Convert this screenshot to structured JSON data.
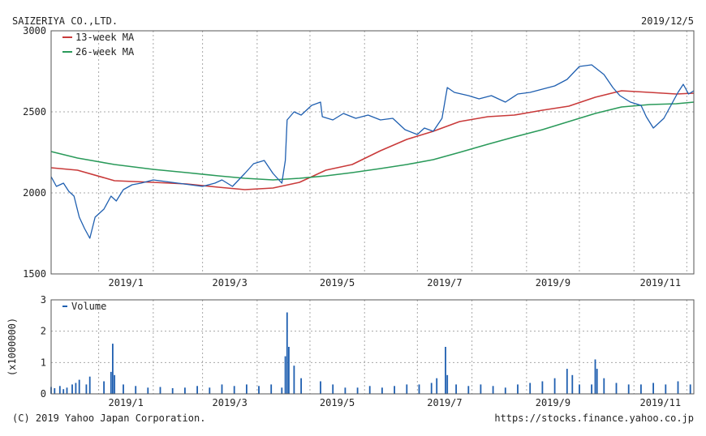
{
  "header": {
    "company": "SAIZERIYA CO.,LTD.",
    "date": "2019/12/5"
  },
  "footer": {
    "copyright": "(C) 2019 Yahoo Japan Corporation.",
    "url": "https://stocks.finance.yahoo.co.jp"
  },
  "colors": {
    "price": "#1f5fb0",
    "ma13": "#c93a3a",
    "ma26": "#2a9a5a",
    "volume": "#1f5fb0",
    "grid": "#a8a8a8",
    "frame": "#555555"
  },
  "chart_data": [
    {
      "type": "line",
      "ylim": [
        1500,
        3000
      ],
      "y_ticks": [
        1500,
        2000,
        2500,
        3000
      ],
      "x_ticks": [
        "2019/1",
        "2019/3",
        "2019/5",
        "2019/7",
        "2019/9",
        "2019/11"
      ],
      "x_domain": [
        "2018-12-05",
        "2019-12-05"
      ],
      "grid": true,
      "legend_position": "top-left",
      "series": [
        {
          "name": "13-week MA",
          "points": [
            [
              "2018-12-05",
              2155
            ],
            [
              "2018-12-20",
              2140
            ],
            [
              "2019-01-10",
              2075
            ],
            [
              "2019-02-01",
              2065
            ],
            [
              "2019-02-20",
              2055
            ],
            [
              "2019-03-10",
              2035
            ],
            [
              "2019-03-25",
              2020
            ],
            [
              "2019-04-10",
              2030
            ],
            [
              "2019-04-25",
              2065
            ],
            [
              "2019-05-10",
              2140
            ],
            [
              "2019-05-25",
              2175
            ],
            [
              "2019-06-10",
              2260
            ],
            [
              "2019-06-25",
              2330
            ],
            [
              "2019-07-10",
              2380
            ],
            [
              "2019-07-25",
              2440
            ],
            [
              "2019-08-10",
              2470
            ],
            [
              "2019-08-25",
              2480
            ],
            [
              "2019-09-10",
              2510
            ],
            [
              "2019-09-25",
              2535
            ],
            [
              "2019-10-10",
              2590
            ],
            [
              "2019-10-25",
              2630
            ],
            [
              "2019-11-10",
              2620
            ],
            [
              "2019-11-25",
              2610
            ],
            [
              "2019-12-05",
              2615
            ]
          ]
        },
        {
          "name": "26-week MA",
          "points": [
            [
              "2018-12-05",
              2255
            ],
            [
              "2018-12-20",
              2215
            ],
            [
              "2019-01-10",
              2175
            ],
            [
              "2019-02-01",
              2145
            ],
            [
              "2019-02-20",
              2125
            ],
            [
              "2019-03-10",
              2105
            ],
            [
              "2019-03-25",
              2090
            ],
            [
              "2019-04-10",
              2080
            ],
            [
              "2019-04-25",
              2090
            ],
            [
              "2019-05-10",
              2105
            ],
            [
              "2019-05-25",
              2125
            ],
            [
              "2019-06-10",
              2150
            ],
            [
              "2019-06-25",
              2175
            ],
            [
              "2019-07-10",
              2205
            ],
            [
              "2019-07-25",
              2250
            ],
            [
              "2019-08-10",
              2300
            ],
            [
              "2019-08-25",
              2345
            ],
            [
              "2019-09-10",
              2390
            ],
            [
              "2019-09-25",
              2440
            ],
            [
              "2019-10-10",
              2490
            ],
            [
              "2019-10-25",
              2530
            ],
            [
              "2019-11-10",
              2545
            ],
            [
              "2019-11-25",
              2550
            ],
            [
              "2019-12-05",
              2560
            ]
          ]
        },
        {
          "name": "",
          "points": [
            [
              "2018-12-05",
              2100
            ],
            [
              "2018-12-08",
              2040
            ],
            [
              "2018-12-12",
              2060
            ],
            [
              "2018-12-15",
              2010
            ],
            [
              "2018-12-18",
              1980
            ],
            [
              "2018-12-21",
              1850
            ],
            [
              "2018-12-24",
              1780
            ],
            [
              "2018-12-27",
              1720
            ],
            [
              "2018-12-30",
              1850
            ],
            [
              "2019-01-04",
              1900
            ],
            [
              "2019-01-08",
              1980
            ],
            [
              "2019-01-11",
              1950
            ],
            [
              "2019-01-15",
              2020
            ],
            [
              "2019-01-20",
              2050
            ],
            [
              "2019-01-25",
              2060
            ],
            [
              "2019-02-01",
              2080
            ],
            [
              "2019-02-08",
              2070
            ],
            [
              "2019-02-15",
              2060
            ],
            [
              "2019-02-22",
              2050
            ],
            [
              "2019-03-01",
              2040
            ],
            [
              "2019-03-08",
              2060
            ],
            [
              "2019-03-12",
              2080
            ],
            [
              "2019-03-18",
              2040
            ],
            [
              "2019-03-25",
              2120
            ],
            [
              "2019-03-30",
              2180
            ],
            [
              "2019-04-05",
              2200
            ],
            [
              "2019-04-10",
              2120
            ],
            [
              "2019-04-15",
              2060
            ],
            [
              "2019-04-17",
              2200
            ],
            [
              "2019-04-18",
              2450
            ],
            [
              "2019-04-22",
              2500
            ],
            [
              "2019-04-26",
              2480
            ],
            [
              "2019-05-02",
              2540
            ],
            [
              "2019-05-07",
              2560
            ],
            [
              "2019-05-08",
              2470
            ],
            [
              "2019-05-14",
              2450
            ],
            [
              "2019-05-20",
              2490
            ],
            [
              "2019-05-27",
              2460
            ],
            [
              "2019-06-03",
              2480
            ],
            [
              "2019-06-10",
              2450
            ],
            [
              "2019-06-17",
              2460
            ],
            [
              "2019-06-24",
              2390
            ],
            [
              "2019-07-01",
              2360
            ],
            [
              "2019-07-05",
              2400
            ],
            [
              "2019-07-10",
              2380
            ],
            [
              "2019-07-15",
              2460
            ],
            [
              "2019-07-18",
              2650
            ],
            [
              "2019-07-22",
              2620
            ],
            [
              "2019-07-30",
              2600
            ],
            [
              "2019-08-05",
              2580
            ],
            [
              "2019-08-12",
              2600
            ],
            [
              "2019-08-20",
              2560
            ],
            [
              "2019-08-27",
              2610
            ],
            [
              "2019-09-03",
              2620
            ],
            [
              "2019-09-10",
              2640
            ],
            [
              "2019-09-17",
              2660
            ],
            [
              "2019-09-24",
              2700
            ],
            [
              "2019-10-01",
              2780
            ],
            [
              "2019-10-08",
              2790
            ],
            [
              "2019-10-15",
              2730
            ],
            [
              "2019-10-20",
              2650
            ],
            [
              "2019-10-24",
              2600
            ],
            [
              "2019-10-30",
              2560
            ],
            [
              "2019-11-05",
              2540
            ],
            [
              "2019-11-08",
              2470
            ],
            [
              "2019-11-12",
              2400
            ],
            [
              "2019-11-18",
              2460
            ],
            [
              "2019-11-22",
              2540
            ],
            [
              "2019-11-26",
              2620
            ],
            [
              "2019-11-29",
              2670
            ],
            [
              "2019-12-02",
              2610
            ],
            [
              "2019-12-05",
              2630
            ]
          ]
        }
      ]
    },
    {
      "type": "bar",
      "ylabel": "(x1000000)",
      "ylim": [
        0,
        3
      ],
      "y_ticks": [
        0,
        1,
        2,
        3
      ],
      "x_ticks": [
        "2019/1",
        "2019/3",
        "2019/5",
        "2019/7",
        "2019/9",
        "2019/11"
      ],
      "x_domain": [
        "2018-12-05",
        "2019-12-05"
      ],
      "grid": true,
      "legend_position": "top-left",
      "series": [
        {
          "name": "Volume",
          "points": [
            [
              "2018-12-05",
              0.22
            ],
            [
              "2018-12-07",
              0.18
            ],
            [
              "2018-12-10",
              0.25
            ],
            [
              "2018-12-12",
              0.15
            ],
            [
              "2018-12-14",
              0.2
            ],
            [
              "2018-12-17",
              0.3
            ],
            [
              "2018-12-19",
              0.35
            ],
            [
              "2018-12-21",
              0.45
            ],
            [
              "2018-12-25",
              0.3
            ],
            [
              "2018-12-27",
              0.55
            ],
            [
              "2019-01-04",
              0.4
            ],
            [
              "2019-01-08",
              0.7
            ],
            [
              "2019-01-09",
              1.6
            ],
            [
              "2019-01-10",
              0.6
            ],
            [
              "2019-01-15",
              0.3
            ],
            [
              "2019-01-22",
              0.25
            ],
            [
              "2019-01-29",
              0.2
            ],
            [
              "2019-02-05",
              0.22
            ],
            [
              "2019-02-12",
              0.18
            ],
            [
              "2019-02-19",
              0.2
            ],
            [
              "2019-02-26",
              0.25
            ],
            [
              "2019-03-05",
              0.2
            ],
            [
              "2019-03-12",
              0.3
            ],
            [
              "2019-03-19",
              0.25
            ],
            [
              "2019-03-26",
              0.3
            ],
            [
              "2019-04-02",
              0.25
            ],
            [
              "2019-04-09",
              0.3
            ],
            [
              "2019-04-15",
              0.2
            ],
            [
              "2019-04-17",
              1.2
            ],
            [
              "2019-04-18",
              2.6
            ],
            [
              "2019-04-19",
              1.5
            ],
            [
              "2019-04-22",
              0.9
            ],
            [
              "2019-04-26",
              0.5
            ],
            [
              "2019-05-07",
              0.4
            ],
            [
              "2019-05-14",
              0.3
            ],
            [
              "2019-05-21",
              0.2
            ],
            [
              "2019-05-28",
              0.2
            ],
            [
              "2019-06-04",
              0.25
            ],
            [
              "2019-06-11",
              0.2
            ],
            [
              "2019-06-18",
              0.25
            ],
            [
              "2019-06-25",
              0.3
            ],
            [
              "2019-07-02",
              0.3
            ],
            [
              "2019-07-09",
              0.35
            ],
            [
              "2019-07-12",
              0.5
            ],
            [
              "2019-07-17",
              1.5
            ],
            [
              "2019-07-18",
              0.6
            ],
            [
              "2019-07-23",
              0.3
            ],
            [
              "2019-07-30",
              0.25
            ],
            [
              "2019-08-06",
              0.3
            ],
            [
              "2019-08-13",
              0.25
            ],
            [
              "2019-08-20",
              0.2
            ],
            [
              "2019-08-27",
              0.3
            ],
            [
              "2019-09-03",
              0.35
            ],
            [
              "2019-09-10",
              0.4
            ],
            [
              "2019-09-17",
              0.5
            ],
            [
              "2019-09-24",
              0.8
            ],
            [
              "2019-09-27",
              0.6
            ],
            [
              "2019-10-01",
              0.3
            ],
            [
              "2019-10-08",
              0.3
            ],
            [
              "2019-10-10",
              1.1
            ],
            [
              "2019-10-11",
              0.8
            ],
            [
              "2019-10-15",
              0.5
            ],
            [
              "2019-10-22",
              0.35
            ],
            [
              "2019-10-29",
              0.3
            ],
            [
              "2019-11-05",
              0.3
            ],
            [
              "2019-11-12",
              0.35
            ],
            [
              "2019-11-19",
              0.3
            ],
            [
              "2019-11-26",
              0.4
            ],
            [
              "2019-12-03",
              0.3
            ]
          ]
        }
      ]
    }
  ]
}
